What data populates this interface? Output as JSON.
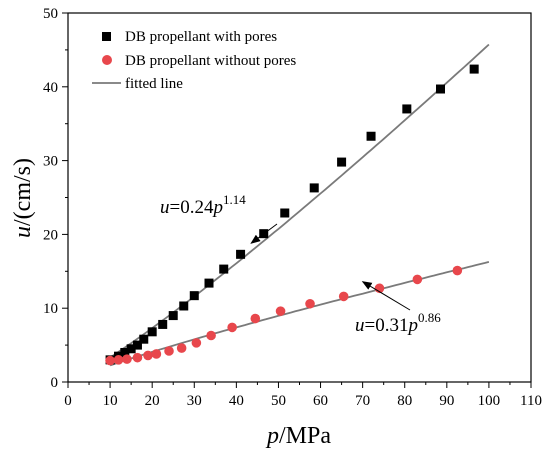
{
  "chart_data": {
    "type": "scatter",
    "xlabel": {
      "var": "p",
      "unit": "/MPa"
    },
    "ylabel": {
      "var": "u",
      "unit": "/(cm/s)"
    },
    "xlim": [
      0,
      110
    ],
    "ylim": [
      0,
      50
    ],
    "xticks": [
      "0",
      "10",
      "20",
      "30",
      "40",
      "50",
      "60",
      "70",
      "80",
      "90",
      "100",
      "110"
    ],
    "yticks": [
      "0",
      "10",
      "20",
      "30",
      "40",
      "50"
    ],
    "grid": false,
    "legend_position": "top-left",
    "series": [
      {
        "name": "DB propellant with pores",
        "marker": "square",
        "color": "#000000",
        "x": [
          10,
          12,
          13.5,
          15,
          16.5,
          18,
          20,
          22.5,
          25,
          27.5,
          30,
          33.5,
          37,
          41,
          46.5,
          51.5,
          58.5,
          65,
          72,
          80.5,
          88.5,
          96.5
        ],
        "y": [
          3.0,
          3.5,
          4.0,
          4.5,
          5.0,
          5.8,
          6.8,
          7.8,
          9.0,
          10.3,
          11.7,
          13.4,
          15.3,
          17.3,
          20.1,
          22.9,
          26.3,
          29.8,
          33.3,
          37.0,
          39.7,
          42.4
        ]
      },
      {
        "name": "DB propellant without pores",
        "marker": "circle",
        "color": "#e8474c",
        "x": [
          10,
          12,
          14,
          16.5,
          19,
          21,
          24,
          27,
          30.5,
          34,
          39,
          44.5,
          50.5,
          57.5,
          65.5,
          74,
          83,
          92.5
        ],
        "y": [
          2.9,
          3.0,
          3.1,
          3.3,
          3.6,
          3.8,
          4.2,
          4.6,
          5.3,
          6.3,
          7.4,
          8.6,
          9.6,
          10.6,
          11.6,
          12.7,
          13.9,
          15.1
        ]
      },
      {
        "name": "fitted line",
        "type": "line",
        "color": "#7a7a7a",
        "curves": [
          {
            "coef": 0.24,
            "exp": 1.14,
            "x_range": [
              10,
              100
            ]
          },
          {
            "coef": 0.31,
            "exp": 0.86,
            "x_range": [
              10,
              100
            ]
          }
        ]
      }
    ],
    "annotations": [
      {
        "lhs": "u",
        "eq": "=0.24",
        "var": "p",
        "exp": "1.14",
        "arrow_to": [
          43.5,
          18.8
        ]
      },
      {
        "lhs": "u",
        "eq": "=0.31",
        "var": "p",
        "exp": "0.86",
        "arrow_to": [
          70,
          13.6
        ]
      }
    ]
  }
}
